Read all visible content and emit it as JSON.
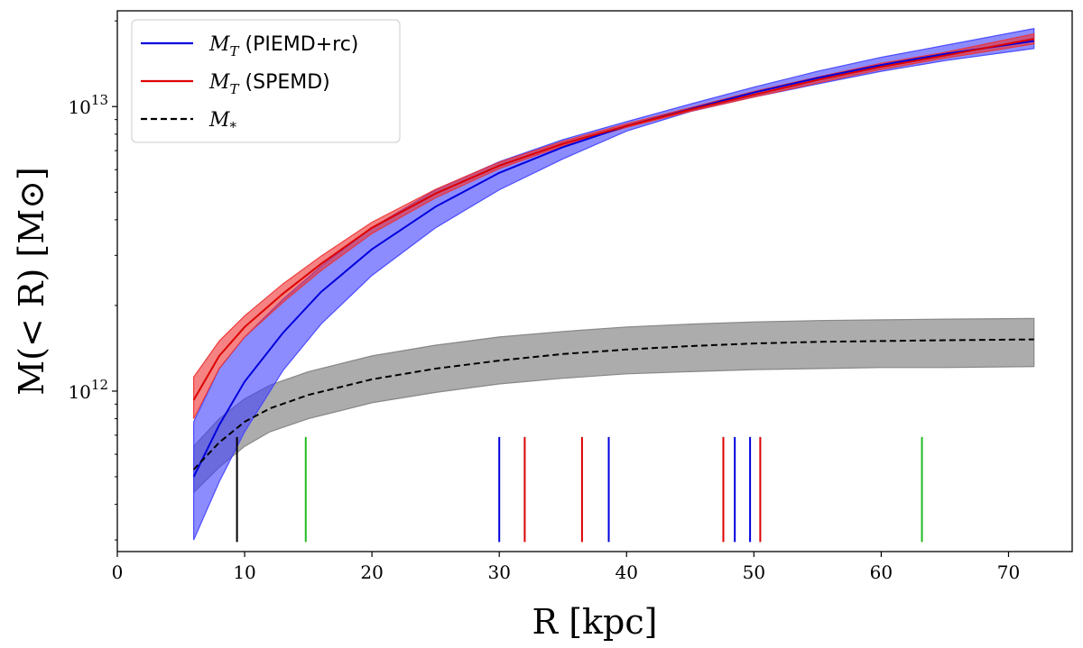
{
  "chart_data": {
    "type": "line",
    "xlabel": "R [kpc]",
    "ylabel": "M(< R) [M⊙]",
    "xscale": "linear",
    "yscale": "log",
    "xlim": [
      0,
      75
    ],
    "ylim": [
      273000000000.0,
      21700000000000.0
    ],
    "x_ticks": [
      0,
      10,
      20,
      30,
      40,
      50,
      60,
      70
    ],
    "x_tick_labels": [
      "0",
      "10",
      "20",
      "30",
      "40",
      "50",
      "60",
      "70"
    ],
    "y_ticks": [
      1000000000000.0,
      10000000000000.0
    ],
    "y_tick_labels": [
      {
        "base": "10",
        "exp": "12"
      },
      {
        "base": "10",
        "exp": "13"
      }
    ],
    "legend_position": "top-left",
    "series": [
      {
        "name": "M_T (PIEMD+rc)",
        "legend": {
          "symbol": "M",
          "sub": "T",
          "text": " (PIEMD+rc)"
        },
        "color": "#0000dd",
        "band_color": "#4040ff",
        "linestyle": "solid",
        "x": [
          6,
          8,
          10,
          13,
          16,
          20,
          25,
          30,
          35,
          40,
          45,
          50,
          55,
          60,
          65,
          72
        ],
        "y": [
          500000000000.0,
          760000000000.0,
          1080000000000.0,
          1600000000000.0,
          2230000000000.0,
          3150000000000.0,
          4450000000000.0,
          5850000000000.0,
          7200000000000.0,
          8550000000000.0,
          9800000000000.0,
          11200000000000.0,
          12600000000000.0,
          14000000000000.0,
          15300000000000.0,
          17000000000000.0
        ],
        "lower": [
          300000000000.0,
          480000000000.0,
          720000000000.0,
          1180000000000.0,
          1720000000000.0,
          2550000000000.0,
          3750000000000.0,
          5100000000000.0,
          6550000000000.0,
          8200000000000.0,
          9600000000000.0,
          10800000000000.0,
          12000000000000.0,
          13300000000000.0,
          14500000000000.0,
          16000000000000.0
        ],
        "upper": [
          780000000000.0,
          1200000000000.0,
          1550000000000.0,
          2100000000000.0,
          2750000000000.0,
          3750000000000.0,
          5100000000000.0,
          6400000000000.0,
          7650000000000.0,
          8850000000000.0,
          10200000000000.0,
          11700000000000.0,
          13300000000000.0,
          14900000000000.0,
          16400000000000.0,
          18800000000000.0
        ]
      },
      {
        "name": "M_T (SPEMD)",
        "legend": {
          "symbol": "M",
          "sub": "T",
          "text": " (SPEMD)"
        },
        "color": "#dd0000",
        "band_color": "#ee3030",
        "linestyle": "solid",
        "x": [
          6,
          8,
          10,
          13,
          16,
          20,
          25,
          30,
          35,
          40,
          45,
          50,
          55,
          60,
          65,
          72
        ],
        "y": [
          930000000000.0,
          1330000000000.0,
          1680000000000.0,
          2200000000000.0,
          2800000000000.0,
          3750000000000.0,
          4950000000000.0,
          6200000000000.0,
          7400000000000.0,
          8550000000000.0,
          9750000000000.0,
          11000000000000.0,
          12400000000000.0,
          13800000000000.0,
          15100000000000.0,
          17300000000000.0
        ],
        "lower": [
          800000000000.0,
          1200000000000.0,
          1550000000000.0,
          2050000000000.0,
          2650000000000.0,
          3580000000000.0,
          4780000000000.0,
          6050000000000.0,
          7280000000000.0,
          8450000000000.0,
          9620000000000.0,
          10800000000000.0,
          12100000000000.0,
          13500000000000.0,
          14800000000000.0,
          16600000000000.0
        ],
        "upper": [
          1120000000000.0,
          1500000000000.0,
          1840000000000.0,
          2380000000000.0,
          2980000000000.0,
          3920000000000.0,
          5120000000000.0,
          6380000000000.0,
          7550000000000.0,
          8700000000000.0,
          9900000000000.0,
          11300000000000.0,
          12700000000000.0,
          14200000000000.0,
          15500000000000.0,
          18000000000000.0
        ]
      },
      {
        "name": "M_* ",
        "legend": {
          "symbol": "M",
          "sub": "*",
          "text": ""
        },
        "color": "#000000",
        "band_color": "#808080",
        "linestyle": "dashed",
        "x": [
          6,
          8,
          10,
          12,
          15,
          20,
          25,
          30,
          35,
          40,
          45,
          50,
          55,
          60,
          65,
          72
        ],
        "y": [
          530000000000.0,
          660000000000.0,
          780000000000.0,
          870000000000.0,
          970000000000.0,
          1100000000000.0,
          1200000000000.0,
          1280000000000.0,
          1350000000000.0,
          1400000000000.0,
          1440000000000.0,
          1470000000000.0,
          1490000000000.0,
          1500000000000.0,
          1510000000000.0,
          1520000000000.0
        ],
        "lower": [
          440000000000.0,
          540000000000.0,
          640000000000.0,
          720000000000.0,
          800000000000.0,
          910000000000.0,
          990000000000.0,
          1060000000000.0,
          1110000000000.0,
          1150000000000.0,
          1170000000000.0,
          1190000000000.0,
          1200000000000.0,
          1210000000000.0,
          1210000000000.0,
          1220000000000.0
        ],
        "upper": [
          640000000000.0,
          800000000000.0,
          940000000000.0,
          1050000000000.0,
          1170000000000.0,
          1330000000000.0,
          1450000000000.0,
          1550000000000.0,
          1620000000000.0,
          1680000000000.0,
          1720000000000.0,
          1750000000000.0,
          1770000000000.0,
          1780000000000.0,
          1790000000000.0,
          1800000000000.0
        ]
      }
    ],
    "vertical_markers": {
      "y_bottom": 295000000000.0,
      "y_top": 690000000000.0,
      "lines": [
        {
          "x": 9.4,
          "color": "#000000"
        },
        {
          "x": 14.8,
          "color": "#22bb22"
        },
        {
          "x": 30.0,
          "color": "#0000dd"
        },
        {
          "x": 32.0,
          "color": "#dd0000"
        },
        {
          "x": 36.5,
          "color": "#dd0000"
        },
        {
          "x": 38.6,
          "color": "#0000dd"
        },
        {
          "x": 47.6,
          "color": "#dd0000"
        },
        {
          "x": 48.5,
          "color": "#0000dd"
        },
        {
          "x": 49.7,
          "color": "#0000dd"
        },
        {
          "x": 50.5,
          "color": "#dd0000"
        },
        {
          "x": 63.2,
          "color": "#22bb22"
        }
      ]
    }
  }
}
